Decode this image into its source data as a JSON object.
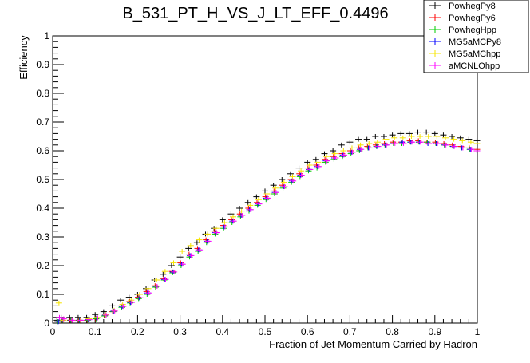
{
  "chart_data": {
    "type": "scatter",
    "title": "B_531_PT_H_VS_J_LT_EFF_0.4496",
    "xlabel": "Fraction of Jet Momentum Carried by Hadron",
    "ylabel": "Efficiency",
    "xlim": [
      0,
      1
    ],
    "ylim": [
      0,
      1
    ],
    "x_ticks": [
      "0",
      "0.1",
      "0.2",
      "0.3",
      "0.4",
      "0.5",
      "0.6",
      "0.7",
      "0.8",
      "0.9",
      "1"
    ],
    "y_ticks": [
      "0",
      "0.1",
      "0.2",
      "0.3",
      "0.4",
      "0.5",
      "0.6",
      "0.7",
      "0.8",
      "0.9",
      "1"
    ],
    "grid": false,
    "legend_position": "top-right",
    "x_anchor": [
      0.01,
      0.02,
      0.04,
      0.06,
      0.08,
      0.1,
      0.12,
      0.14,
      0.16,
      0.18,
      0.2,
      0.22,
      0.24,
      0.26,
      0.28,
      0.3,
      0.32,
      0.34,
      0.36,
      0.38,
      0.4,
      0.42,
      0.44,
      0.46,
      0.48,
      0.5,
      0.52,
      0.54,
      0.56,
      0.58,
      0.6,
      0.62,
      0.64,
      0.66,
      0.68,
      0.7,
      0.72,
      0.74,
      0.76,
      0.78,
      0.8,
      0.82,
      0.84,
      0.86,
      0.88,
      0.9,
      0.92,
      0.94,
      0.96,
      0.98,
      1.0
    ],
    "series": [
      {
        "name": "PowhegPy8",
        "color": "#000000",
        "offset": 0.0,
        "values": [
          0.01,
          0.02,
          0.02,
          0.02,
          0.02,
          0.03,
          0.04,
          0.06,
          0.08,
          0.09,
          0.1,
          0.12,
          0.15,
          0.17,
          0.2,
          0.23,
          0.26,
          0.28,
          0.31,
          0.33,
          0.36,
          0.38,
          0.4,
          0.42,
          0.44,
          0.46,
          0.48,
          0.5,
          0.52,
          0.54,
          0.56,
          0.57,
          0.59,
          0.6,
          0.62,
          0.63,
          0.64,
          0.64,
          0.65,
          0.65,
          0.655,
          0.66,
          0.66,
          0.665,
          0.665,
          0.66,
          0.655,
          0.65,
          0.645,
          0.64,
          0.635
        ]
      },
      {
        "name": "PowhegPy6",
        "color": "#ff0000",
        "offset": 0.003,
        "values": [
          0.005,
          0.01,
          0.01,
          0.01,
          0.01,
          0.015,
          0.025,
          0.04,
          0.06,
          0.075,
          0.09,
          0.11,
          0.13,
          0.155,
          0.18,
          0.21,
          0.24,
          0.26,
          0.29,
          0.32,
          0.34,
          0.36,
          0.38,
          0.4,
          0.42,
          0.44,
          0.46,
          0.48,
          0.5,
          0.52,
          0.54,
          0.55,
          0.57,
          0.58,
          0.59,
          0.6,
          0.61,
          0.615,
          0.62,
          0.625,
          0.63,
          0.63,
          0.635,
          0.635,
          0.63,
          0.63,
          0.625,
          0.62,
          0.615,
          0.61,
          0.605
        ]
      },
      {
        "name": "PowhegHpp",
        "color": "#00cc00",
        "offset": 0.006,
        "values": [
          0.005,
          0.01,
          0.01,
          0.01,
          0.01,
          0.015,
          0.025,
          0.04,
          0.055,
          0.07,
          0.085,
          0.1,
          0.125,
          0.15,
          0.175,
          0.2,
          0.23,
          0.25,
          0.28,
          0.31,
          0.33,
          0.35,
          0.37,
          0.39,
          0.41,
          0.43,
          0.45,
          0.47,
          0.49,
          0.51,
          0.53,
          0.54,
          0.56,
          0.57,
          0.58,
          0.59,
          0.6,
          0.61,
          0.615,
          0.62,
          0.625,
          0.625,
          0.63,
          0.63,
          0.63,
          0.625,
          0.62,
          0.615,
          0.61,
          0.605,
          0.6
        ]
      },
      {
        "name": "MG5aMCPy8",
        "color": "#0000ff",
        "offset": 0.009,
        "values": [
          0.005,
          0.01,
          0.01,
          0.01,
          0.012,
          0.018,
          0.028,
          0.042,
          0.058,
          0.072,
          0.088,
          0.105,
          0.128,
          0.152,
          0.178,
          0.205,
          0.235,
          0.255,
          0.285,
          0.315,
          0.335,
          0.355,
          0.375,
          0.395,
          0.415,
          0.435,
          0.455,
          0.475,
          0.495,
          0.515,
          0.535,
          0.545,
          0.565,
          0.575,
          0.585,
          0.595,
          0.605,
          0.61,
          0.615,
          0.62,
          0.625,
          0.63,
          0.63,
          0.63,
          0.625,
          0.625,
          0.62,
          0.615,
          0.61,
          0.605,
          0.6
        ]
      },
      {
        "name": "MG5aMChpp",
        "color": "#f5e400",
        "offset": 0.012,
        "values": [
          0.07,
          0.01,
          0.01,
          0.01,
          0.015,
          0.02,
          0.03,
          0.045,
          0.065,
          0.08,
          0.1,
          0.12,
          0.15,
          0.18,
          0.21,
          0.25,
          0.27,
          0.29,
          0.31,
          0.33,
          0.35,
          0.37,
          0.39,
          0.41,
          0.43,
          0.45,
          0.47,
          0.49,
          0.51,
          0.53,
          0.55,
          0.56,
          0.58,
          0.59,
          0.6,
          0.61,
          0.62,
          0.625,
          0.63,
          0.64,
          0.645,
          0.645,
          0.65,
          0.65,
          0.65,
          0.65,
          0.645,
          0.64,
          0.635,
          0.63,
          0.625
        ]
      },
      {
        "name": "aMCNLOhpp",
        "color": "#ff00ff",
        "offset": 0.015,
        "values": [
          0.02,
          0.015,
          0.01,
          0.01,
          0.012,
          0.018,
          0.028,
          0.042,
          0.058,
          0.072,
          0.088,
          0.105,
          0.128,
          0.152,
          0.178,
          0.205,
          0.235,
          0.255,
          0.285,
          0.315,
          0.335,
          0.355,
          0.375,
          0.395,
          0.415,
          0.435,
          0.455,
          0.475,
          0.495,
          0.515,
          0.535,
          0.545,
          0.565,
          0.575,
          0.585,
          0.595,
          0.605,
          0.61,
          0.615,
          0.62,
          0.625,
          0.625,
          0.63,
          0.63,
          0.625,
          0.625,
          0.62,
          0.615,
          0.61,
          0.605,
          0.6
        ]
      }
    ]
  }
}
